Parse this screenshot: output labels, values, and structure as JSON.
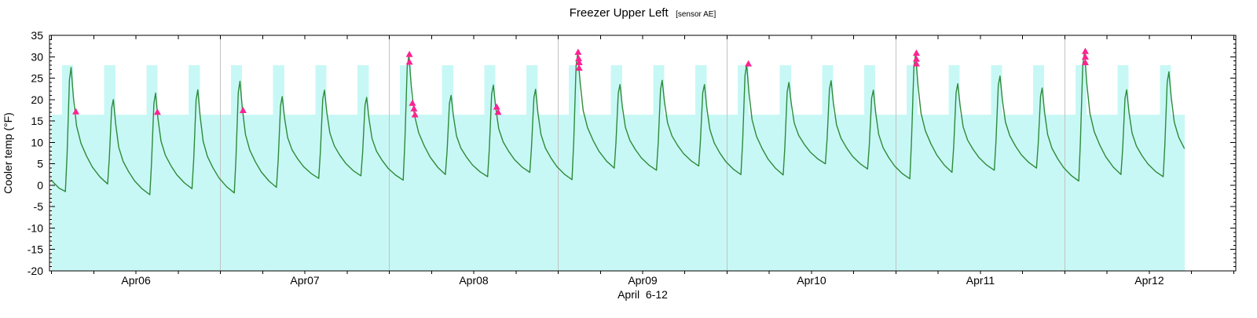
{
  "chart_data": {
    "type": "line",
    "title": "Freezer Upper Left",
    "title_suffix": "[sensor AE]",
    "xlabel": "April  6-12",
    "ylabel": "Cooler temp (°F)",
    "ylim": [
      -20,
      35
    ],
    "ytick_major_step": 5,
    "ytick_minor_step": 1,
    "xlim_days": [
      -0.012,
      7.012
    ],
    "x_day_labels": [
      "Apr06",
      "Apr07",
      "Apr08",
      "Apr09",
      "Apr10",
      "Apr11",
      "Apr12"
    ],
    "x_label_positions_days": [
      0.5,
      1.5,
      2.5,
      3.5,
      4.5,
      5.5,
      6.5
    ],
    "x_gridline_days": [
      1,
      2,
      3,
      4,
      5,
      6
    ],
    "xtick_step_days": 0.25,
    "data_start_day": 0,
    "data_end_day": 6.71,
    "grid": "vertical-day-lines-only",
    "legend": "none",
    "defrost_band": {
      "top_f": 16.5,
      "bottom_f": -20
    },
    "defrost_blocks": {
      "count": 27,
      "interval_days": 0.25,
      "start_offset_days": 0.062,
      "width_days": 0.066,
      "top_f": 28,
      "bottom_f": -20
    },
    "series": {
      "name": "cooler-temp",
      "cycle_interval_days": 0.25,
      "cycle_start_offset_days": 0.082,
      "peaks_f": [
        27.5,
        20.0,
        21.5,
        22.3,
        24.3,
        20.7,
        22.2,
        20.5,
        30.4,
        21.0,
        23.4,
        22.4,
        30.9,
        23.5,
        24.5,
        23.5,
        28.2,
        24.0,
        24.4,
        22.2,
        30.7,
        23.7,
        25.5,
        22.7,
        31.1,
        22.3,
        26.5
      ],
      "valleys_f": [
        -1.5,
        0.3,
        -2.2,
        -0.8,
        -1.8,
        -0.5,
        1.6,
        2.2,
        1.2,
        2.5,
        2.0,
        3.0,
        1.3,
        4.0,
        3.5,
        4.5,
        2.5,
        2.4,
        5.0,
        3.8,
        1.5,
        3.0,
        3.5,
        4.0,
        1.0,
        2.5,
        2.0
      ],
      "end_valley_f": 3.0,
      "head_points": [
        [
          0,
          1.2
        ],
        [
          0.02,
          0.3
        ],
        [
          0.045,
          -0.7
        ],
        [
          0.075,
          -1.3
        ]
      ],
      "rise_shape": [
        [
          0,
          0
        ],
        [
          0.01,
          0.3
        ],
        [
          0.024,
          0.9
        ],
        [
          0.034,
          1
        ]
      ],
      "decay_shape": [
        [
          0.048,
          0.26
        ],
        [
          0.066,
          0.5
        ],
        [
          0.092,
          0.65
        ],
        [
          0.125,
          0.76
        ],
        [
          0.16,
          0.855
        ],
        [
          0.205,
          0.94
        ],
        [
          0.25,
          1
        ]
      ]
    },
    "alarm_markers": [
      [
        0.144,
        17.0
      ],
      [
        0.627,
        16.9
      ],
      [
        1.134,
        17.3
      ],
      [
        2.119,
        30.4
      ],
      [
        2.119,
        28.6
      ],
      [
        2.137,
        19.0
      ],
      [
        2.146,
        17.7
      ],
      [
        2.152,
        16.3
      ],
      [
        2.636,
        18.1
      ],
      [
        2.644,
        16.9
      ],
      [
        3.118,
        30.9
      ],
      [
        3.121,
        29.4
      ],
      [
        3.124,
        28.5
      ],
      [
        3.124,
        27.2
      ],
      [
        4.126,
        28.2
      ],
      [
        5.121,
        30.7
      ],
      [
        5.121,
        29.3
      ],
      [
        5.121,
        28.2
      ],
      [
        6.121,
        31.1
      ],
      [
        6.121,
        29.8
      ],
      [
        6.121,
        28.5
      ]
    ],
    "colors": {
      "line": "#2e8b3a",
      "fill": "#c8f8f5",
      "marker": "#ff2291",
      "grid": "#c2c2c2",
      "axis": "#000000"
    }
  }
}
